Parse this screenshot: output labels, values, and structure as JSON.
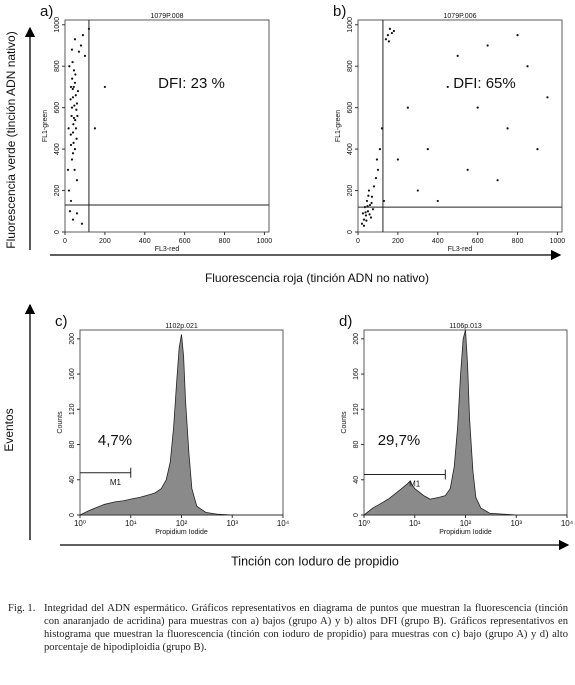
{
  "chart_data": [
    {
      "type": "scatter",
      "label": "a)",
      "title": "1079P.008",
      "annotation": "DFI: 23 %",
      "xlabel": "FL3-red",
      "ylabel": "FL1-green",
      "xlim": [
        0,
        1023
      ],
      "ylim": [
        0,
        1023
      ],
      "xticks": [
        0,
        200,
        400,
        600,
        800,
        1000
      ],
      "yticks": [
        0,
        200,
        400,
        600,
        800,
        1000
      ],
      "gate_x": 120,
      "gate_y": 130,
      "color": "#111",
      "points": [
        [
          30,
          700
        ],
        [
          40,
          650
        ],
        [
          50,
          720
        ],
        [
          35,
          600
        ],
        [
          45,
          550
        ],
        [
          55,
          500
        ],
        [
          40,
          480
        ],
        [
          30,
          420
        ],
        [
          50,
          400
        ],
        [
          60,
          620
        ],
        [
          65,
          680
        ],
        [
          45,
          780
        ],
        [
          38,
          820
        ],
        [
          52,
          760
        ],
        [
          42,
          520
        ],
        [
          58,
          450
        ],
        [
          35,
          350
        ],
        [
          48,
          300
        ],
        [
          62,
          560
        ],
        [
          28,
          640
        ],
        [
          44,
          700
        ],
        [
          54,
          660
        ],
        [
          36,
          740
        ],
        [
          40,
          380
        ],
        [
          20,
          200
        ],
        [
          30,
          150
        ],
        [
          25,
          100
        ],
        [
          40,
          60
        ],
        [
          80,
          900
        ],
        [
          90,
          950
        ],
        [
          120,
          980
        ],
        [
          100,
          850
        ],
        [
          60,
          250
        ],
        [
          70,
          870
        ],
        [
          150,
          500
        ],
        [
          200,
          700
        ],
        [
          35,
          880
        ],
        [
          50,
          930
        ],
        [
          85,
          40
        ],
        [
          60,
          90
        ],
        [
          15,
          300
        ],
        [
          18,
          500
        ],
        [
          22,
          800
        ],
        [
          47,
          610
        ],
        [
          33,
          560
        ],
        [
          57,
          590
        ],
        [
          43,
          430
        ],
        [
          39,
          690
        ],
        [
          51,
          540
        ],
        [
          29,
          470
        ]
      ]
    },
    {
      "type": "scatter",
      "label": "b)",
      "title": "1079P.006",
      "annotation": "DFI: 65%",
      "xlabel": "FL3-red",
      "ylabel": "FL1-green",
      "xlim": [
        0,
        1023
      ],
      "ylim": [
        0,
        1023
      ],
      "xticks": [
        0,
        200,
        400,
        600,
        800,
        1000
      ],
      "yticks": [
        0,
        200,
        400,
        600,
        800,
        1000
      ],
      "gate_x": 125,
      "gate_y": 120,
      "color": "#111",
      "points": [
        [
          20,
          40
        ],
        [
          30,
          60
        ],
        [
          40,
          80
        ],
        [
          50,
          100
        ],
        [
          35,
          120
        ],
        [
          45,
          150
        ],
        [
          60,
          130
        ],
        [
          70,
          170
        ],
        [
          55,
          200
        ],
        [
          80,
          220
        ],
        [
          90,
          260
        ],
        [
          30,
          30
        ],
        [
          25,
          90
        ],
        [
          65,
          70
        ],
        [
          75,
          110
        ],
        [
          100,
          300
        ],
        [
          110,
          400
        ],
        [
          95,
          350
        ],
        [
          120,
          500
        ],
        [
          150,
          950
        ],
        [
          160,
          980
        ],
        [
          140,
          930
        ],
        [
          170,
          960
        ],
        [
          180,
          970
        ],
        [
          155,
          920
        ],
        [
          250,
          600
        ],
        [
          350,
          400
        ],
        [
          450,
          700
        ],
        [
          550,
          300
        ],
        [
          650,
          900
        ],
        [
          750,
          500
        ],
        [
          850,
          800
        ],
        [
          300,
          200
        ],
        [
          400,
          150
        ],
        [
          600,
          600
        ],
        [
          700,
          250
        ],
        [
          800,
          950
        ],
        [
          900,
          400
        ],
        [
          500,
          850
        ],
        [
          200,
          350
        ],
        [
          950,
          650
        ],
        [
          130,
          150
        ],
        [
          42,
          55
        ],
        [
          58,
          85
        ],
        [
          48,
          125
        ],
        [
          38,
          95
        ],
        [
          68,
          140
        ],
        [
          52,
          175
        ]
      ]
    },
    {
      "type": "histogram",
      "label": "c)",
      "title": "1102p.021",
      "annotation": "4,7%",
      "xlabel": "Propidium Iodide",
      "ylabel": "Counts",
      "log_x": true,
      "xlim": [
        1,
        10000
      ],
      "ylim": [
        0,
        210
      ],
      "yticks": [
        0,
        40,
        80,
        120,
        160,
        200
      ],
      "xticks": [
        {
          "value": 1,
          "label": "10⁰"
        },
        {
          "value": 10,
          "label": "10¹"
        },
        {
          "value": 100,
          "label": "10²"
        },
        {
          "value": 1000,
          "label": "10³"
        },
        {
          "value": 10000,
          "label": "10⁴"
        }
      ],
      "marker": {
        "label": "M1",
        "range": [
          1,
          10
        ],
        "level": 48
      },
      "color": "#8a8a8a",
      "x": [
        1,
        1.5,
        2,
        3,
        5,
        7,
        10,
        15,
        20,
        30,
        40,
        50,
        60,
        70,
        80,
        90,
        100,
        110,
        120,
        140,
        160,
        200,
        300,
        500,
        1000,
        10000
      ],
      "values": [
        0,
        5,
        8,
        12,
        15,
        16,
        18,
        20,
        22,
        25,
        30,
        40,
        60,
        100,
        150,
        190,
        205,
        180,
        130,
        70,
        30,
        10,
        3,
        1,
        0,
        0
      ]
    },
    {
      "type": "histogram",
      "label": "d)",
      "title": "1106p.013",
      "annotation": "29,7%",
      "xlabel": "Propidium Iodide",
      "ylabel": "Counts",
      "log_x": true,
      "xlim": [
        1,
        10000
      ],
      "ylim": [
        0,
        210
      ],
      "yticks": [
        0,
        40,
        80,
        120,
        160,
        200
      ],
      "xticks": [
        {
          "value": 1,
          "label": "10⁰"
        },
        {
          "value": 10,
          "label": "10¹"
        },
        {
          "value": 100,
          "label": "10²"
        },
        {
          "value": 1000,
          "label": "10³"
        },
        {
          "value": 10000,
          "label": "10⁴"
        }
      ],
      "marker": {
        "label": "M1",
        "range": [
          1,
          40
        ],
        "level": 46
      },
      "color": "#8a8a8a",
      "x": [
        1,
        1.5,
        2,
        3,
        5,
        7,
        8,
        10,
        15,
        20,
        30,
        40,
        50,
        60,
        70,
        80,
        90,
        100,
        110,
        120,
        140,
        160,
        200,
        300,
        1000,
        10000
      ],
      "values": [
        0,
        8,
        12,
        18,
        28,
        35,
        38,
        30,
        22,
        18,
        20,
        22,
        30,
        55,
        100,
        160,
        200,
        210,
        170,
        110,
        50,
        20,
        8,
        2,
        0,
        0
      ]
    }
  ],
  "axis_titles": {
    "green": "Fluorescencia verde (tinción ADN  nativo)",
    "red": "Fluorescencia roja (tinción ADN no nativo)",
    "events": "Eventos",
    "pi": "Tinción con Ioduro de propidio"
  },
  "caption": {
    "label": "Fig. 1.",
    "text": "Integridad del ADN espermático. Gráficos representativos en diagrama de puntos que muestran la fluorescencia (tinción con anaranjado de acridina) para muestras con a) bajos (grupo A) y b) altos DFI (grupo B). Gráficos representativos en histograma que muestran la fluorescencia (tinción con ioduro de propidio) para muestras con c) bajo (grupo A) y d) alto porcentaje de hipodiploidia (grupo B)."
  }
}
